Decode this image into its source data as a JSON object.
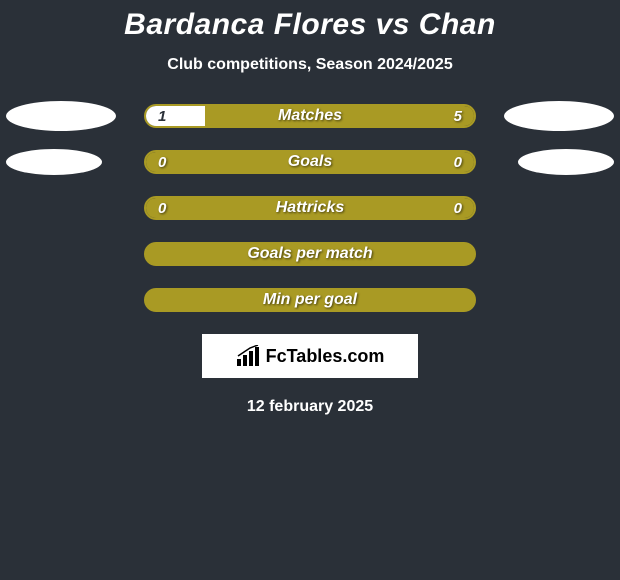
{
  "title": "Bardanca Flores vs Chan",
  "subtitle": "Club competitions, Season 2024/2025",
  "colors": {
    "background": "#2a3038",
    "accent": "#a99a24",
    "accent_border": "#a99a24",
    "text": "#ffffff",
    "logo_bg": "#ffffff"
  },
  "rows": [
    {
      "type": "split",
      "label": "Matches",
      "left_value": "1",
      "right_value": "5",
      "left_fill_percent": 18,
      "right_fill_percent": 82,
      "left_fill_color": "#ffffff",
      "right_fill_color": "#a99a24",
      "border_color": "#a99a24",
      "show_left_ellipse": true,
      "show_right_ellipse": true,
      "left_ellipse_width": 110,
      "right_ellipse_width": 110
    },
    {
      "type": "split",
      "label": "Goals",
      "left_value": "0",
      "right_value": "0",
      "left_fill_percent": 0,
      "right_fill_percent": 100,
      "left_fill_color": "#ffffff",
      "right_fill_color": "#a99a24",
      "border_color": "#a99a24",
      "show_left_ellipse": true,
      "show_right_ellipse": true,
      "left_ellipse_width": 96,
      "right_ellipse_width": 96
    },
    {
      "type": "split",
      "label": "Hattricks",
      "left_value": "0",
      "right_value": "0",
      "left_fill_percent": 0,
      "right_fill_percent": 100,
      "left_fill_color": "#ffffff",
      "right_fill_color": "#a99a24",
      "border_color": "#a99a24",
      "show_left_ellipse": false,
      "show_right_ellipse": false
    },
    {
      "type": "full",
      "label": "Goals per match",
      "fill_color": "#a99a24",
      "border_color": "#a99a24"
    },
    {
      "type": "full",
      "label": "Min per goal",
      "fill_color": "#a99a24",
      "border_color": "#a99a24"
    }
  ],
  "logo": {
    "text": "FcTables.com"
  },
  "date": "12 february 2025"
}
